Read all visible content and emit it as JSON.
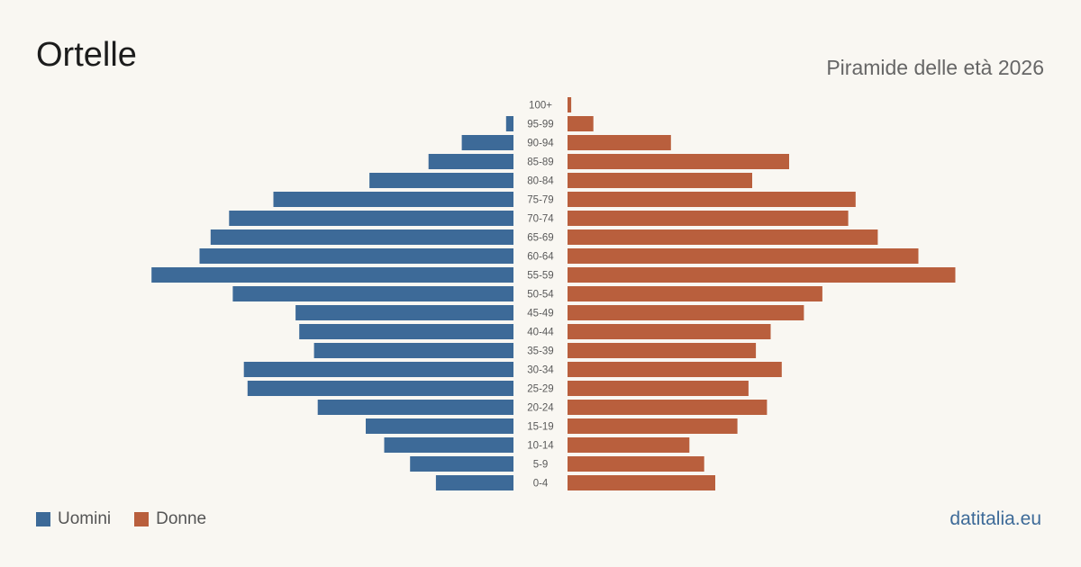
{
  "header": {
    "title": "Ortelle",
    "subtitle": "Piramide delle età 2026"
  },
  "legend": {
    "men_label": "Uomini",
    "women_label": "Donne"
  },
  "site": "datitalia.eu",
  "colors": {
    "men": "#3d6a98",
    "women": "#b95f3d",
    "background": "#f9f7f2"
  },
  "chart_data": {
    "type": "bar",
    "orientation": "horizontal-pyramid",
    "categories": [
      "100+",
      "95-99",
      "90-94",
      "85-89",
      "80-84",
      "75-79",
      "70-74",
      "65-69",
      "60-64",
      "55-59",
      "50-54",
      "45-49",
      "40-44",
      "35-39",
      "30-34",
      "25-29",
      "20-24",
      "15-19",
      "10-14",
      "5-9",
      "0-4"
    ],
    "series": [
      {
        "name": "Uomini",
        "values": [
          0,
          2,
          14,
          23,
          39,
          65,
          77,
          82,
          85,
          98,
          76,
          59,
          58,
          54,
          73,
          72,
          53,
          40,
          35,
          28,
          21
        ]
      },
      {
        "name": "Donne",
        "values": [
          1,
          7,
          28,
          60,
          50,
          78,
          76,
          84,
          95,
          105,
          69,
          64,
          55,
          51,
          58,
          49,
          54,
          46,
          33,
          37,
          40
        ]
      }
    ],
    "grid": false,
    "legend_position": "bottom-left"
  }
}
